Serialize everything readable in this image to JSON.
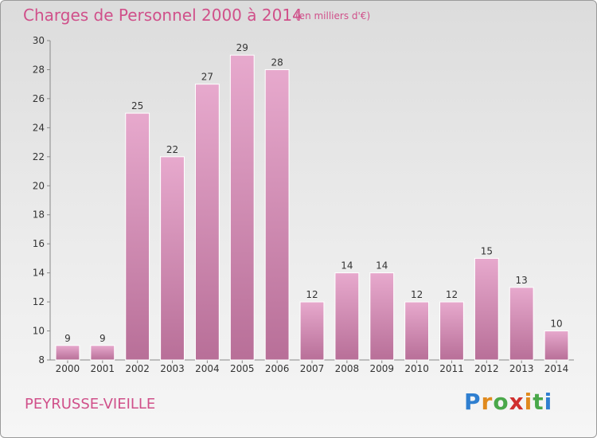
{
  "header": {
    "title": "Charges de Personnel 2000 à 2014",
    "subtitle": "(en milliers d'€)"
  },
  "footer": {
    "commune": "PEYRUSSE-VIEILLE",
    "logo": {
      "letters": [
        {
          "char": "P",
          "color": "#2f7fd0"
        },
        {
          "char": "r",
          "color": "#e08a1e"
        },
        {
          "char": "o",
          "color": "#4aa84a"
        },
        {
          "char": "x",
          "color": "#d0302f"
        },
        {
          "char": "i",
          "color": "#e08a1e"
        },
        {
          "char": "t",
          "color": "#4aa84a"
        },
        {
          "char": "i",
          "color": "#2f7fd0"
        }
      ]
    }
  },
  "colors": {
    "bar_top": "#e7a9cd",
    "bar_bottom": "#b86f98",
    "accent": "#d0508a"
  },
  "chart_data": {
    "type": "bar",
    "categories": [
      "2000",
      "2001",
      "2002",
      "2003",
      "2004",
      "2005",
      "2006",
      "2007",
      "2008",
      "2009",
      "2010",
      "2011",
      "2012",
      "2013",
      "2014"
    ],
    "values": [
      9,
      9,
      25,
      22,
      27,
      29,
      28,
      12,
      14,
      14,
      12,
      12,
      15,
      13,
      10
    ],
    "ylim": [
      8,
      30
    ],
    "yticks": [
      8,
      10,
      12,
      14,
      16,
      18,
      20,
      22,
      24,
      26,
      28,
      30
    ],
    "grid": false,
    "legend": "none"
  }
}
